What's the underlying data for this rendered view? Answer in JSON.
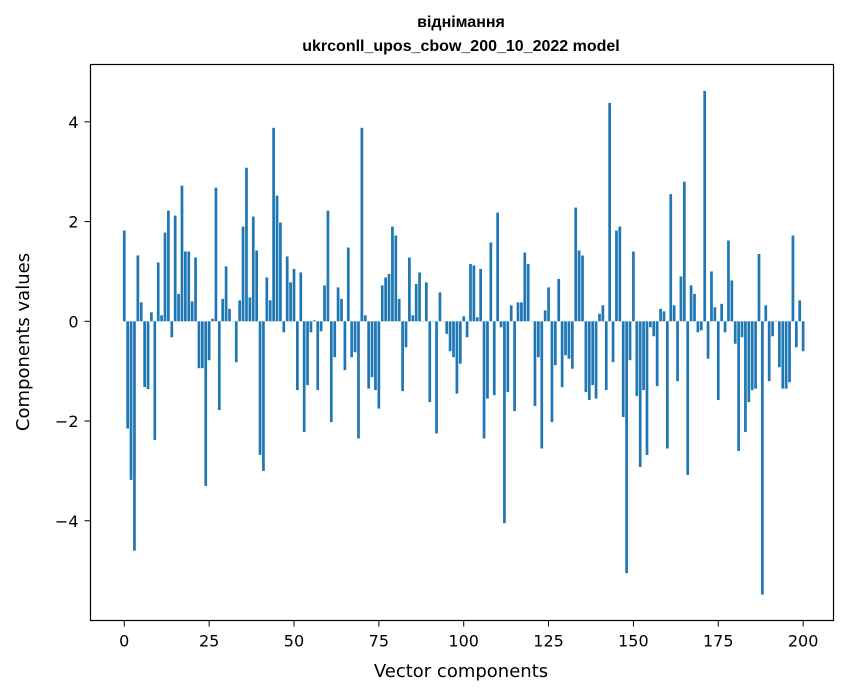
{
  "chart_data": {
    "type": "bar",
    "title": "віднімання",
    "subtitle": "ukrconll_upos_cbow_200_10_2022 model",
    "xlabel": "Vector components",
    "ylabel": "Components values",
    "xlim": [
      -9.95,
      208.95
    ],
    "ylim": [
      -6.0,
      5.15
    ],
    "xticks": [
      0,
      25,
      50,
      75,
      100,
      125,
      150,
      175,
      200
    ],
    "xtick_labels": [
      "0",
      "25",
      "50",
      "75",
      "100",
      "125",
      "150",
      "175",
      "200"
    ],
    "yticks": [
      -4,
      -2,
      0,
      2,
      4
    ],
    "ytick_labels": [
      "−4",
      "−2",
      "0",
      "2",
      "4"
    ],
    "bar_color": "#1f77b4",
    "values": [
      1.82,
      -2.15,
      -3.18,
      -4.6,
      1.32,
      0.38,
      -1.32,
      -1.36,
      0.18,
      -2.38,
      1.18,
      0.12,
      1.78,
      2.22,
      -0.32,
      2.12,
      0.55,
      2.72,
      1.4,
      1.4,
      0.4,
      1.28,
      -0.94,
      -0.94,
      -3.3,
      -0.78,
      0.05,
      2.68,
      -1.78,
      0.45,
      1.1,
      0.25,
      0.0,
      -0.82,
      0.42,
      1.9,
      3.08,
      0.48,
      2.1,
      1.42,
      -2.68,
      -3.0,
      0.88,
      0.42,
      3.88,
      2.52,
      1.98,
      -0.22,
      1.3,
      0.78,
      1.05,
      -1.38,
      0.98,
      -2.22,
      -1.28,
      -0.22,
      0.02,
      -1.38,
      -0.2,
      0.72,
      2.22,
      -2.02,
      -0.72,
      0.68,
      0.45,
      -0.98,
      1.48,
      -0.72,
      -0.62,
      -2.35,
      3.88,
      0.12,
      -1.35,
      -1.12,
      -1.38,
      -1.75,
      0.72,
      0.88,
      0.95,
      1.9,
      1.72,
      0.45,
      -1.4,
      -0.52,
      1.28,
      0.12,
      0.75,
      0.98,
      0.0,
      0.78,
      -1.62,
      0.0,
      -2.25,
      0.58,
      0.0,
      -0.25,
      -0.6,
      -0.72,
      -1.45,
      -0.85,
      0.1,
      -0.32,
      1.15,
      1.12,
      0.08,
      1.05,
      -2.35,
      -1.55,
      1.58,
      -1.48,
      2.18,
      -0.12,
      -4.05,
      -1.42,
      0.32,
      -1.8,
      0.38,
      0.38,
      1.38,
      1.15,
      0.0,
      -1.7,
      -0.72,
      -2.55,
      0.22,
      0.68,
      -2.02,
      -0.88,
      0.85,
      -1.32,
      -0.68,
      -0.75,
      -0.95,
      2.28,
      1.42,
      1.32,
      -1.42,
      -1.58,
      -1.28,
      -1.55,
      0.15,
      0.32,
      -1.38,
      4.38,
      -0.82,
      1.82,
      1.9,
      -1.92,
      -5.05,
      -0.78,
      1.4,
      -1.5,
      -2.92,
      -1.38,
      -2.68,
      -0.12,
      -0.3,
      -1.3,
      0.25,
      0.2,
      -2.55,
      2.55,
      0.32,
      -1.2,
      0.9,
      2.8,
      -3.08,
      0.72,
      0.55,
      -0.22,
      -0.18,
      4.62,
      -0.75,
      1.0,
      0.28,
      -1.58,
      0.35,
      -0.22,
      1.62,
      0.82,
      -0.45,
      -2.6,
      -0.32,
      -2.22,
      -1.62,
      -1.38,
      -1.35,
      1.35,
      -5.48,
      0.32,
      -1.2,
      -0.3,
      0.0,
      -0.92,
      -1.35,
      -1.35,
      -1.22,
      1.72,
      -0.52,
      0.42,
      -0.6
    ]
  }
}
